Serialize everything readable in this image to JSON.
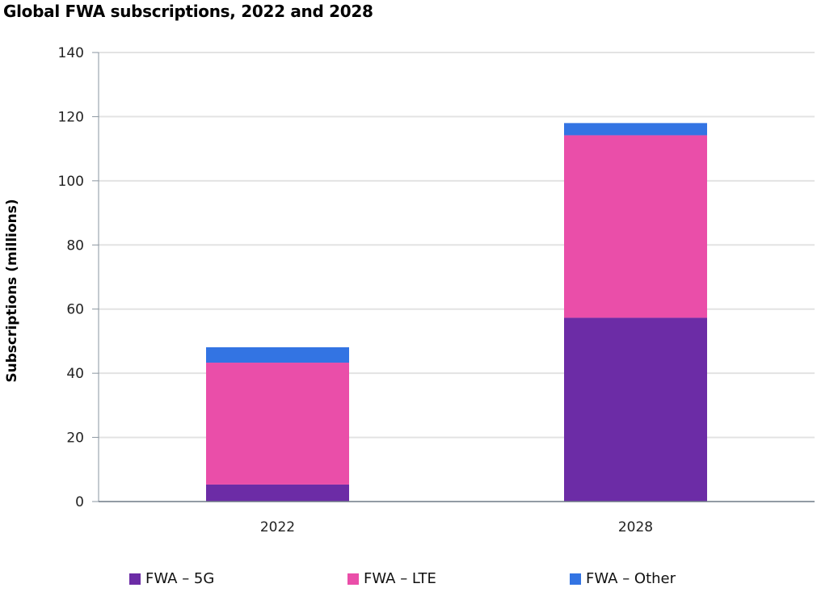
{
  "chart_data": {
    "type": "bar",
    "stacked": true,
    "title": "Global FWA subscriptions, 2022 and 2028",
    "xlabel": "",
    "ylabel": "Subscriptions (millions)",
    "ylim": [
      0,
      140
    ],
    "yticks": [
      0,
      20,
      40,
      60,
      80,
      100,
      120,
      140
    ],
    "grid": true,
    "categories": [
      "2022",
      "2028"
    ],
    "series": [
      {
        "name": "FWA – 5G",
        "color": "#6c2ca6",
        "values": [
          5.3,
          57.3
        ]
      },
      {
        "name": "FWA – LTE",
        "color": "#ea4ea9",
        "values": [
          38.0,
          56.9
        ]
      },
      {
        "name": "FWA – Other",
        "color": "#3374e3",
        "values": [
          4.8,
          3.8
        ]
      }
    ],
    "legend_position": "bottom"
  }
}
